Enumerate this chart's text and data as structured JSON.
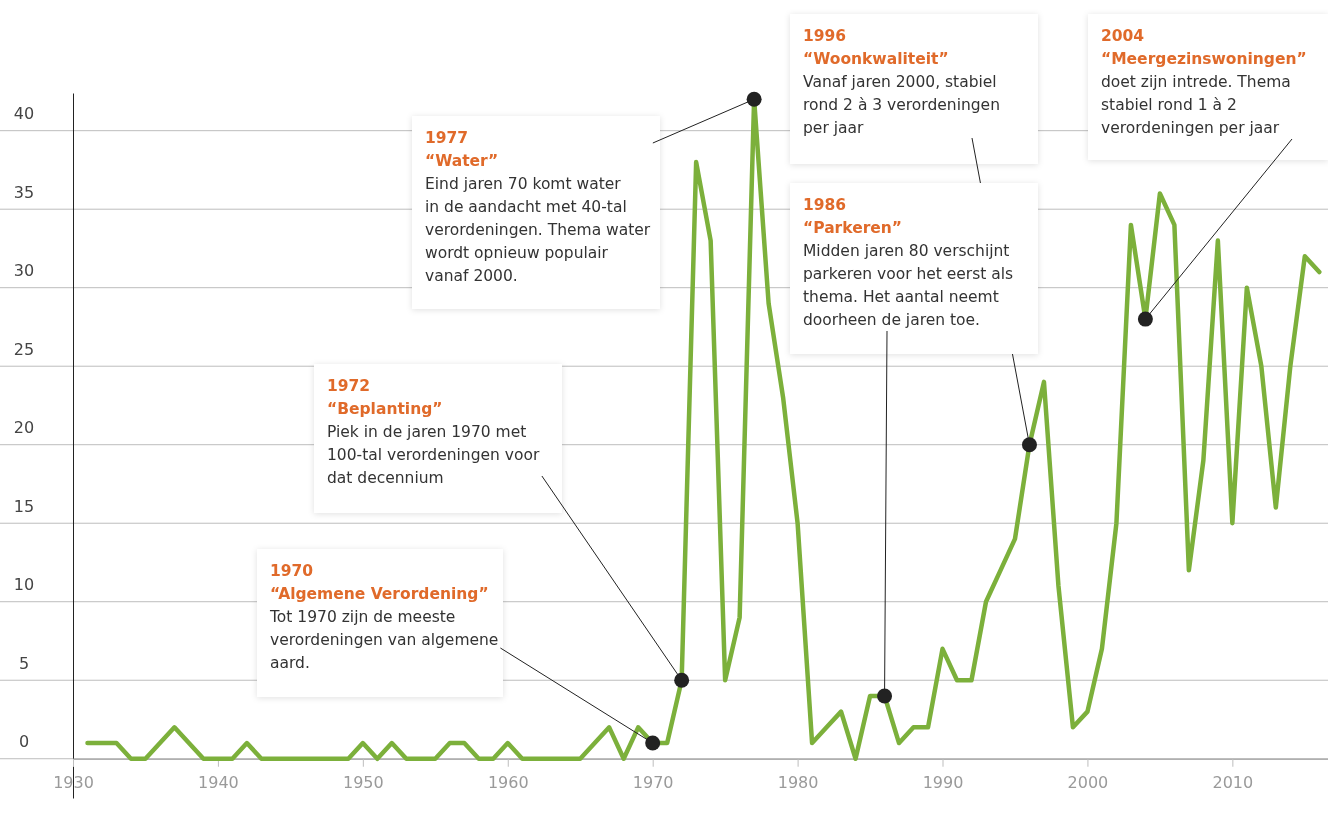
{
  "chart_data": {
    "type": "line",
    "x": [
      1931,
      1932,
      1933,
      1934,
      1935,
      1936,
      1937,
      1938,
      1939,
      1940,
      1941,
      1942,
      1943,
      1944,
      1945,
      1946,
      1947,
      1948,
      1949,
      1950,
      1951,
      1952,
      1953,
      1954,
      1955,
      1956,
      1957,
      1958,
      1959,
      1960,
      1961,
      1962,
      1963,
      1964,
      1965,
      1966,
      1967,
      1968,
      1969,
      1970,
      1971,
      1972,
      1973,
      1974,
      1975,
      1976,
      1977,
      1978,
      1979,
      1980,
      1981,
      1982,
      1983,
      1984,
      1985,
      1986,
      1987,
      1988,
      1989,
      1990,
      1991,
      1992,
      1993,
      1994,
      1995,
      1996,
      1997,
      1998,
      1999,
      2000,
      2001,
      2002,
      2003,
      2004,
      2005,
      2006,
      2007,
      2008,
      2009,
      2010,
      2011,
      2012,
      2013,
      2014,
      2015,
      2016
    ],
    "series": [
      {
        "color": "#7cb03b",
        "values": [
          1,
          1,
          1,
          0,
          0,
          1,
          2,
          1,
          0,
          0,
          0,
          1,
          0,
          0,
          0,
          0,
          0,
          0,
          0,
          1,
          0,
          1,
          0,
          0,
          0,
          1,
          1,
          0,
          0,
          1,
          0,
          0,
          0,
          0,
          0,
          1,
          2,
          0,
          2,
          1,
          1,
          5,
          38,
          33,
          5,
          9,
          42,
          29,
          23,
          15,
          1,
          2,
          3,
          0,
          4,
          4,
          1,
          2,
          2,
          7,
          5,
          5,
          10,
          12,
          14,
          20,
          24,
          11,
          2,
          3,
          7,
          15,
          34,
          28,
          36,
          34,
          12,
          19,
          33,
          15,
          30,
          25,
          16,
          25,
          32,
          31
        ]
      }
    ],
    "xlim": [
      1930,
      2016.6
    ],
    "xticks": [
      1930,
      1940,
      1950,
      1960,
      1970,
      1980,
      1990,
      2000,
      2010
    ],
    "ylim": [
      -2.5,
      42.4
    ],
    "yticks": [
      0,
      5,
      10,
      15,
      20,
      25,
      30,
      35,
      40
    ],
    "grid": "y",
    "marker": "none",
    "line_style": "solid",
    "annotations": [
      {
        "text": "1970\n“Algemene Verordening”\nTot 1970 zijn de meeste\nverordeningen van algemene\naard.",
        "x": 1970,
        "y": 1
      },
      {
        "text": "1972\n“Beplanting”\nPiek in de jaren 1970 met\n100-tal verordeningen voor\ndat decennium",
        "x": 1972,
        "y": 5
      },
      {
        "text": "1977\n“Water”\nEind jaren 70 komt water\nin de aandacht met 40-tal\nverordeningen. Thema water\nwordt opnieuw populair\nvanaf 2000.",
        "x": 1977,
        "y": 42
      },
      {
        "text": "1996\n“Woonkwaliteit”\nVanaf jaren 2000, stabiel\nrond 2 à 3 verordeningen\nper jaar",
        "x": 1996,
        "y": 20
      },
      {
        "text": "1986\n“Parkeren”\nMidden jaren 80 verschijnt\nparkeren voor het eerst als\nthema. Het aantal neemt\ndoorheen de jaren toe.",
        "x": 1986,
        "y": 4
      },
      {
        "text": "2004\n“Meergezinswoningen”\ndoet zijn intrede. Thema\nstabiel rond 1 à 2\nverordeningen per jaar",
        "x": 2004,
        "y": 28
      }
    ]
  }
}
